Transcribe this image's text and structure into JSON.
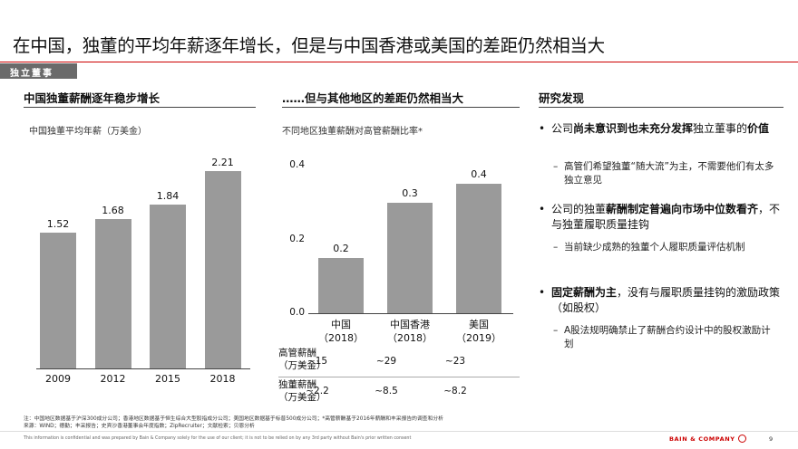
{
  "title": "在中国，独董的平均年薪逐年增长，但是与中国香港或美国的差距仍然相当大",
  "section_tag": "独立董事",
  "left": {
    "heading": "中国独董薪酬逐年稳步增长",
    "subtitle": "中国独董平均年薪（万美金）",
    "chart_data": {
      "type": "bar",
      "categories": [
        "2009",
        "2012",
        "2015",
        "2018"
      ],
      "values": [
        1.52,
        1.68,
        1.84,
        2.21
      ],
      "value_labels": [
        "1.52",
        "1.68",
        "1.84",
        "2.21"
      ],
      "title": "中国独董平均年薪（万美金）",
      "color": "#9a9a9a"
    }
  },
  "middle": {
    "heading": "……但与其他地区的差距仍然相当大",
    "subtitle": "不同地区独董薪酬对高管薪酬比率*",
    "chart_data": {
      "type": "bar",
      "categories": [
        "中国",
        "中国香港",
        "美国"
      ],
      "category_years": [
        "（2018）",
        "（2018）",
        "（2019）"
      ],
      "values": [
        0.15,
        0.3,
        0.35
      ],
      "value_labels": [
        "0.2",
        "0.3",
        "0.4"
      ],
      "yticks": [
        "0.4",
        "0.2",
        "0.0"
      ],
      "ylim": [
        0,
        0.4
      ],
      "title": "不同地区独董薪酬对高管薪酬比率*",
      "color": "#9a9a9a"
    },
    "table": {
      "rows": [
        {
          "label1": "高管薪酬",
          "label2": "（万美金）",
          "values": [
            "~15",
            "~29",
            "~23"
          ]
        },
        {
          "label1": "独董薪酬",
          "label2": "（万美金）",
          "values": [
            "~2.2",
            "~8.5",
            "~8.2"
          ]
        }
      ]
    }
  },
  "right": {
    "heading": "研究发现",
    "bullet_glyph": "•",
    "dash_glyph": "–",
    "points": [
      {
        "pre": "公司",
        "bold1": "尚未意识到也未充分发挥",
        "mid": "独立董事的",
        "bold2": "价值",
        "post": "",
        "sub": "高管们希望独董“随大流”为主，不需要他们有太多独立意见"
      },
      {
        "pre": "公司的独董",
        "bold1": "薪酬制定普遍向市场中位数看齐",
        "mid": "，不与独董履职质量挂钩",
        "bold2": "",
        "post": "",
        "sub": "当前缺少成熟的独董个人履职质量评估机制"
      },
      {
        "pre": "",
        "bold1": "固定薪酬为主",
        "mid": "，没有与履职质量挂钩的激励政策（如股权）",
        "bold2": "",
        "post": "",
        "sub": "A股法规明确禁止了薪酬合约设计中的股权激励计划"
      }
    ]
  },
  "notes": {
    "note": "注：中国地区数据基于沪深300成分公司；香港地区数据基于恒生综合大型股指成分公司；美国地区数据基于标普500成分公司；*高管薪酬基于2016年薪酬和丰采报告的调查和分析",
    "source": "来源：WIND；德勤；丰采报告；史宾沙香港董事会年度指数；ZipRecruiter；文献检索；贝恩分析"
  },
  "footer": {
    "disclaimer": "This information is confidential and was prepared by Bain & Company solely for the use of our client; it is not to be relied on by any 3rd party without Bain's prior written consent",
    "brand": "BAIN & COMPANY",
    "page": "9"
  }
}
